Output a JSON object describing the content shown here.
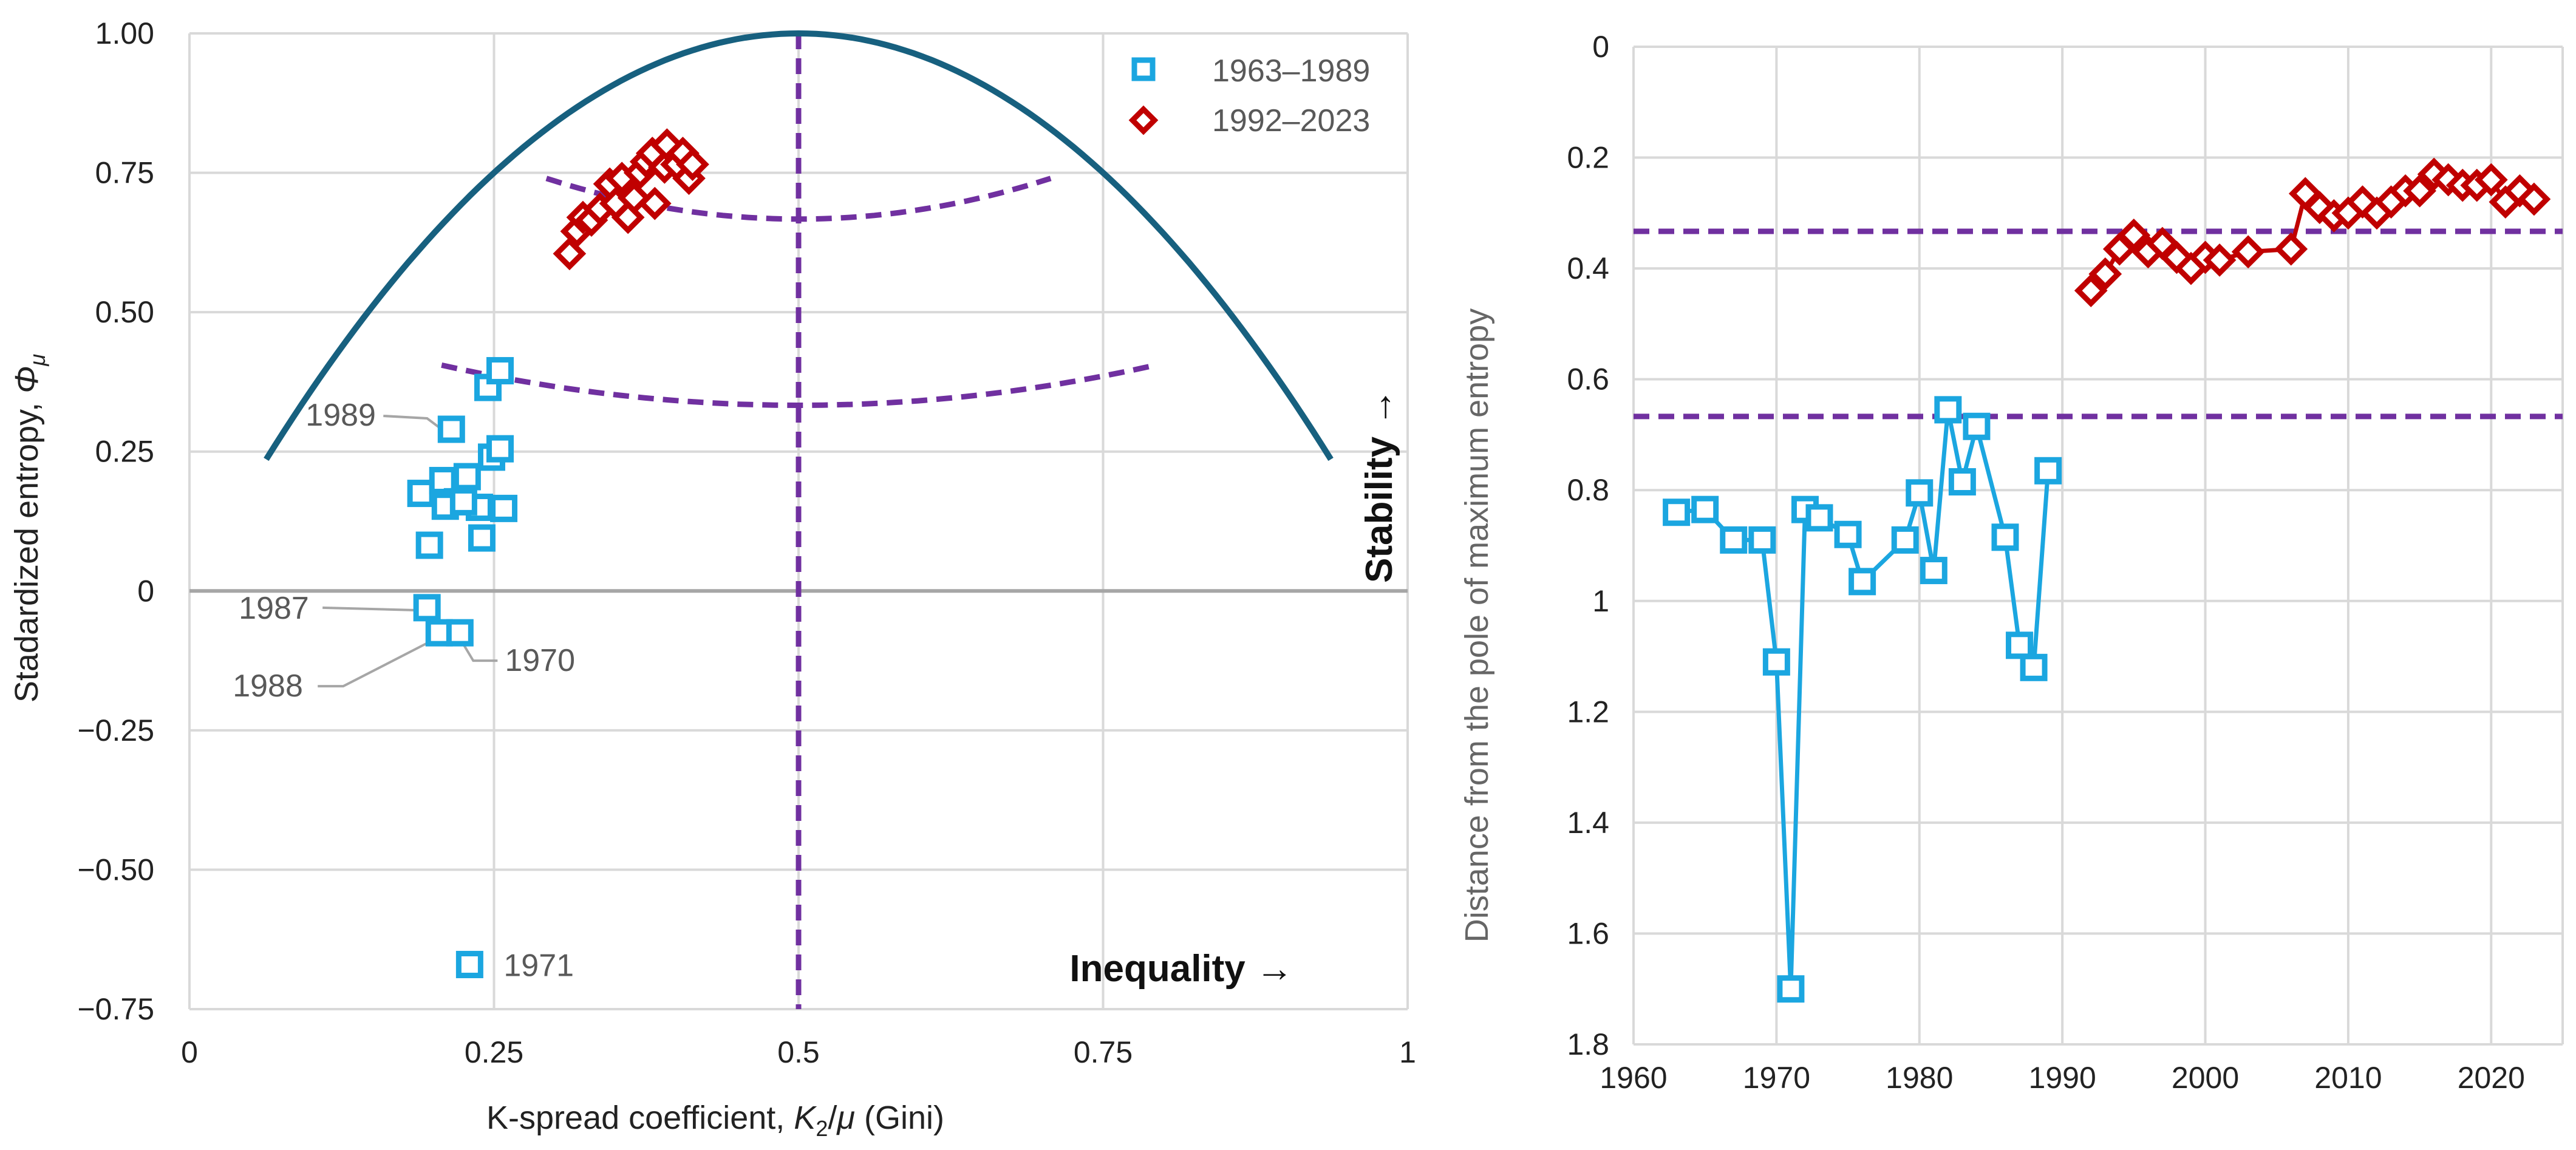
{
  "colors": {
    "blue": "#1BA6E0",
    "red": "#C00000",
    "parabola": "#17607F",
    "guide": "#7030A0",
    "grid": "#D9D9D9",
    "zero_line": "#A6A6A6",
    "leader": "#A6A6A6"
  },
  "chart_data": [
    {
      "type": "scatter",
      "name": "left-panel",
      "title": "",
      "xlabel_prefix": "K-spread coefficient, ",
      "xlabel_var": "K",
      "xlabel_sub": "2",
      "xlabel_slash": "/",
      "xlabel_mu": "μ",
      "xlabel_suffix": " (Gini)",
      "ylabel_prefix": "Stadardized entropy, ",
      "ylabel_var": "Φ",
      "ylabel_sub": "μ",
      "xlim": [
        0,
        1
      ],
      "ylim": [
        -0.75,
        1.0
      ],
      "xticks": [
        0,
        0.25,
        0.5,
        0.75,
        1
      ],
      "xtick_labels": [
        "0",
        "0.25",
        "0.5",
        "0.75",
        "1"
      ],
      "yticks": [
        1.0,
        0.75,
        0.5,
        0.25,
        0,
        -0.25,
        -0.5,
        -0.75
      ],
      "ytick_labels": [
        "1.00",
        "0.75",
        "0.50",
        "0.25",
        "0",
        "−0.25",
        "−0.50",
        "−0.75"
      ],
      "grid": true,
      "legend_position": "top-right",
      "legend": [
        {
          "label": "1963–1989",
          "marker": "square",
          "color": "#1BA6E0"
        },
        {
          "label": "1992–2023",
          "marker": "diamond",
          "color": "#C00000"
        }
      ],
      "parabola": {
        "formula": "y = 1 - 4*(x-0.5)^2",
        "x_range": [
          0.063,
          0.937
        ]
      },
      "guides": {
        "vertical_x": 0.5,
        "arcs": [
          {
            "x_range": [
              0.293,
              0.707
            ],
            "y_end": 0.74,
            "y_mid": 0.667
          },
          {
            "x_range": [
              0.207,
              0.793
            ],
            "y_end": 0.405,
            "y_mid": 0.333
          }
        ]
      },
      "series": [
        {
          "name": "1963–1989",
          "marker": "square",
          "points": [
            [
              0.19,
              0.175
            ],
            [
              0.197,
              0.082
            ],
            [
              0.208,
              0.198
            ],
            [
              0.215,
              0.29
            ],
            [
              0.22,
              0.16
            ],
            [
              0.228,
              0.205
            ],
            [
              0.238,
              0.15
            ],
            [
              0.24,
              0.095
            ],
            [
              0.245,
              0.365
            ],
            [
              0.248,
              0.24
            ],
            [
              0.255,
              0.255
            ],
            [
              0.258,
              0.148
            ],
            [
              0.255,
              0.395
            ],
            [
              0.21,
              0.152
            ],
            [
              0.225,
              0.16
            ],
            [
              0.195,
              -0.03
            ],
            [
              0.205,
              -0.075
            ],
            [
              0.222,
              -0.075
            ],
            [
              0.23,
              -0.67
            ]
          ]
        },
        {
          "name": "1992–2023",
          "marker": "diamond",
          "points": [
            [
              0.312,
              0.605
            ],
            [
              0.318,
              0.645
            ],
            [
              0.323,
              0.67
            ],
            [
              0.33,
              0.665
            ],
            [
              0.337,
              0.685
            ],
            [
              0.345,
              0.73
            ],
            [
              0.35,
              0.695
            ],
            [
              0.355,
              0.74
            ],
            [
              0.36,
              0.67
            ],
            [
              0.365,
              0.705
            ],
            [
              0.37,
              0.75
            ],
            [
              0.375,
              0.77
            ],
            [
              0.38,
              0.785
            ],
            [
              0.382,
              0.695
            ],
            [
              0.39,
              0.76
            ],
            [
              0.392,
              0.8
            ],
            [
              0.4,
              0.765
            ],
            [
              0.405,
              0.785
            ],
            [
              0.41,
              0.74
            ],
            [
              0.413,
              0.765
            ]
          ]
        }
      ],
      "annotations": [
        {
          "text": "1989",
          "point": [
            0.215,
            0.29
          ]
        },
        {
          "text": "1987",
          "point": [
            0.195,
            -0.03
          ]
        },
        {
          "text": "1988",
          "point": [
            0.205,
            -0.075
          ]
        },
        {
          "text": "1970",
          "point": [
            0.222,
            -0.075
          ]
        },
        {
          "text": "1971",
          "point": [
            0.23,
            -0.67
          ]
        }
      ],
      "x_direction_label": "Inequality →",
      "y_direction_label": "Stability →"
    },
    {
      "type": "line",
      "name": "right-panel",
      "title": "",
      "xlabel": "",
      "ylabel": "Distance from the pole of maximum entropy",
      "xlim": [
        1960,
        2025
      ],
      "ylim": [
        0,
        1.8
      ],
      "y_reversed": true,
      "xticks": [
        1960,
        1970,
        1980,
        1990,
        2000,
        2010,
        2020
      ],
      "xtick_labels": [
        "1960",
        "1970",
        "1980",
        "1990",
        "2000",
        "2010",
        "2020"
      ],
      "yticks": [
        0,
        0.2,
        0.4,
        0.6,
        0.8,
        1,
        1.2,
        1.4,
        1.6,
        1.8
      ],
      "ytick_labels": [
        "0",
        "0.2",
        "0.4",
        "0.6",
        "0.8",
        "1",
        "1.2",
        "1.4",
        "1.6",
        "1.8"
      ],
      "grid": true,
      "hlines": [
        0.333,
        0.667
      ],
      "series": [
        {
          "name": "1963–1989",
          "marker": "square",
          "x": [
            1963,
            1965,
            1967,
            1969,
            1970,
            1971,
            1972,
            1973,
            1975,
            1976,
            1979,
            1980,
            1981,
            1982,
            1983,
            1984,
            1986,
            1987,
            1988,
            1989
          ],
          "y": [
            0.84,
            0.835,
            0.89,
            0.89,
            1.11,
            1.7,
            0.835,
            0.85,
            0.88,
            0.965,
            0.89,
            0.805,
            0.945,
            0.655,
            0.785,
            0.685,
            0.885,
            1.08,
            1.12,
            0.765
          ]
        },
        {
          "name": "1992–2023",
          "marker": "diamond",
          "x": [
            1992,
            1993,
            1994,
            1995,
            1996,
            1997,
            1998,
            1999,
            2000,
            2001,
            2003,
            2006,
            2007,
            2008,
            2009,
            2010,
            2011,
            2012,
            2013,
            2014,
            2015,
            2016,
            2017,
            2018,
            2019,
            2020,
            2021,
            2022,
            2023
          ],
          "y": [
            0.44,
            0.41,
            0.365,
            0.34,
            0.37,
            0.355,
            0.38,
            0.4,
            0.38,
            0.385,
            0.37,
            0.365,
            0.265,
            0.29,
            0.305,
            0.3,
            0.28,
            0.3,
            0.28,
            0.26,
            0.26,
            0.23,
            0.24,
            0.25,
            0.25,
            0.24,
            0.28,
            0.26,
            0.275
          ]
        }
      ]
    }
  ]
}
